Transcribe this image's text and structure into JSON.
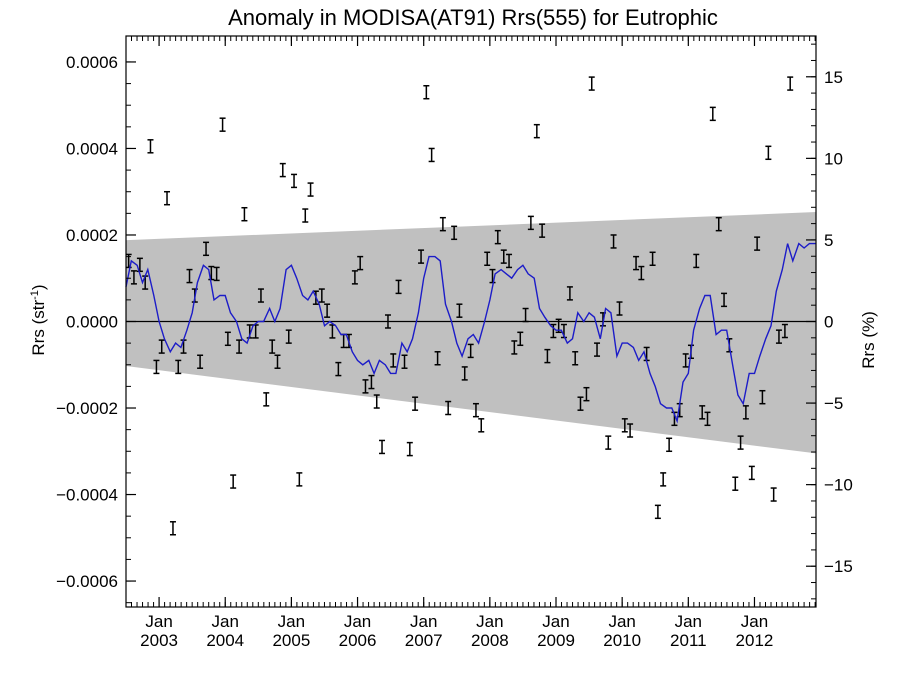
{
  "chart_data": {
    "type": "scatter",
    "title": "Anomaly in MODISA(AT91) Rrs(555) for Eutrophic",
    "ylabel": {
      "base": "Rrs (str",
      "sup": "-1",
      "tail": ")"
    },
    "y2label": "Rrs (%)",
    "xlim": [
      2002.5,
      2012.93
    ],
    "ylim": [
      -0.00066,
      0.00066
    ],
    "y2lim": [
      -17.5,
      17.5
    ],
    "x_ticks": [
      {
        "x": 2003.0,
        "month": "Jan",
        "year": "2003"
      },
      {
        "x": 2004.0,
        "month": "Jan",
        "year": "2004"
      },
      {
        "x": 2005.0,
        "month": "Jan",
        "year": "2005"
      },
      {
        "x": 2006.0,
        "month": "Jan",
        "year": "2006"
      },
      {
        "x": 2007.0,
        "month": "Jan",
        "year": "2007"
      },
      {
        "x": 2008.0,
        "month": "Jan",
        "year": "2008"
      },
      {
        "x": 2009.0,
        "month": "Jan",
        "year": "2009"
      },
      {
        "x": 2010.0,
        "month": "Jan",
        "year": "2010"
      },
      {
        "x": 2011.0,
        "month": "Jan",
        "year": "2011"
      },
      {
        "x": 2012.0,
        "month": "Jan",
        "year": "2012"
      }
    ],
    "y_ticks": [
      {
        "v": 0.0006,
        "label": "0.0006"
      },
      {
        "v": 0.0004,
        "label": "0.0004"
      },
      {
        "v": 0.0002,
        "label": "0.0002"
      },
      {
        "v": 0.0,
        "label": "0.0000"
      },
      {
        "v": -0.0002,
        "label": "−0.0002"
      },
      {
        "v": -0.0004,
        "label": "−0.0004"
      },
      {
        "v": -0.0006,
        "label": "−0.0006"
      }
    ],
    "y2_ticks": [
      {
        "v": 15,
        "label": "15"
      },
      {
        "v": 10,
        "label": "10"
      },
      {
        "v": 5,
        "label": "5"
      },
      {
        "v": 0,
        "label": "0"
      },
      {
        "v": -5,
        "label": "−5"
      },
      {
        "v": -10,
        "label": "−10"
      },
      {
        "v": -15,
        "label": "−15"
      }
    ],
    "band": {
      "x": [
        2002.5,
        2012.93
      ],
      "upper": [
        0.000188,
        0.000253
      ],
      "lower": [
        -0.000103,
        -0.000305
      ],
      "color": "#c0c0c0"
    },
    "zero_line": 0.0,
    "points": [
      [
        2002.54,
        0.00014
      ],
      [
        2002.62,
        0.000102
      ],
      [
        2002.71,
        0.000131
      ],
      [
        2002.79,
        9e-05
      ],
      [
        2002.87,
        0.000405
      ],
      [
        2002.96,
        -0.000105
      ],
      [
        2003.04,
        -5.8e-05
      ],
      [
        2003.12,
        0.000285
      ],
      [
        2003.21,
        -0.000478
      ],
      [
        2003.29,
        -0.000105
      ],
      [
        2003.37,
        -5.8e-05
      ],
      [
        2003.46,
        0.000105
      ],
      [
        2003.54,
        6e-05
      ],
      [
        2003.62,
        -9.3e-05
      ],
      [
        2003.71,
        0.000168
      ],
      [
        2003.79,
        0.000112
      ],
      [
        2003.87,
        0.00011
      ],
      [
        2003.96,
        0.000455
      ],
      [
        2004.04,
        -4e-05
      ],
      [
        2004.12,
        -0.00037
      ],
      [
        2004.21,
        -5.8e-05
      ],
      [
        2004.29,
        0.000248
      ],
      [
        2004.37,
        -2.3e-05
      ],
      [
        2004.46,
        -2.3e-05
      ],
      [
        2004.54,
        6e-05
      ],
      [
        2004.62,
        -0.00018
      ],
      [
        2004.71,
        -5.8e-05
      ],
      [
        2004.79,
        -9.3e-05
      ],
      [
        2004.87,
        0.00035
      ],
      [
        2004.96,
        -3.5e-05
      ],
      [
        2005.04,
        0.000325
      ],
      [
        2005.12,
        -0.000365
      ],
      [
        2005.21,
        0.000245
      ],
      [
        2005.29,
        0.000305
      ],
      [
        2005.37,
        5.5e-05
      ],
      [
        2005.46,
        6e-05
      ],
      [
        2005.54,
        2.5e-05
      ],
      [
        2005.62,
        -2.3e-05
      ],
      [
        2005.71,
        -0.00011
      ],
      [
        2005.79,
        -4.5e-05
      ],
      [
        2005.87,
        -4.5e-05
      ],
      [
        2005.96,
        0.000102
      ],
      [
        2006.04,
        0.000135
      ],
      [
        2006.12,
        -0.00015
      ],
      [
        2006.21,
        -0.00014
      ],
      [
        2006.29,
        -0.000185
      ],
      [
        2006.37,
        -0.00029
      ],
      [
        2006.46,
        0.0
      ],
      [
        2006.54,
        -9e-05
      ],
      [
        2006.62,
        8e-05
      ],
      [
        2006.71,
        -9.3e-05
      ],
      [
        2006.79,
        -0.000295
      ],
      [
        2006.87,
        -0.00019
      ],
      [
        2006.96,
        0.00015
      ],
      [
        2007.04,
        0.00053
      ],
      [
        2007.12,
        0.000385
      ],
      [
        2007.21,
        -8.5e-05
      ],
      [
        2007.29,
        0.000225
      ],
      [
        2007.37,
        -0.0002
      ],
      [
        2007.46,
        0.000205
      ],
      [
        2007.54,
        2.5e-05
      ],
      [
        2007.62,
        -0.00012
      ],
      [
        2007.71,
        -6.8e-05
      ],
      [
        2007.79,
        -0.000205
      ],
      [
        2007.87,
        -0.00024
      ],
      [
        2007.96,
        0.000145
      ],
      [
        2008.04,
        0.000105
      ],
      [
        2008.12,
        0.000195
      ],
      [
        2008.21,
        0.00015
      ],
      [
        2008.29,
        0.00014
      ],
      [
        2008.37,
        -6e-05
      ],
      [
        2008.46,
        -4e-05
      ],
      [
        2008.54,
        1.5e-05
      ],
      [
        2008.62,
        0.000228
      ],
      [
        2008.71,
        0.00044
      ],
      [
        2008.79,
        0.00021
      ],
      [
        2008.87,
        -8e-05
      ],
      [
        2008.96,
        -2.2e-05
      ],
      [
        2009.04,
        -1e-05
      ],
      [
        2009.12,
        -2.2e-05
      ],
      [
        2009.21,
        6.5e-05
      ],
      [
        2009.29,
        -8.5e-05
      ],
      [
        2009.37,
        -0.00019
      ],
      [
        2009.46,
        -0.000168
      ],
      [
        2009.54,
        0.00055
      ],
      [
        2009.62,
        -6.5e-05
      ],
      [
        2009.71,
        5e-06
      ],
      [
        2009.79,
        -0.00028
      ],
      [
        2009.87,
        0.000185
      ],
      [
        2009.96,
        3e-05
      ],
      [
        2010.04,
        -0.00024
      ],
      [
        2010.12,
        -0.000252
      ],
      [
        2010.21,
        0.000135
      ],
      [
        2010.29,
        0.000112
      ],
      [
        2010.37,
        -7.5e-05
      ],
      [
        2010.46,
        0.000145
      ],
      [
        2010.54,
        -0.00044
      ],
      [
        2010.62,
        -0.000365
      ],
      [
        2010.71,
        -0.000285
      ],
      [
        2010.79,
        -0.000225
      ],
      [
        2010.87,
        -0.000205
      ],
      [
        2010.96,
        -9e-05
      ],
      [
        2011.04,
        -7e-05
      ],
      [
        2011.12,
        0.00014
      ],
      [
        2011.21,
        -0.00021
      ],
      [
        2011.29,
        -0.000225
      ],
      [
        2011.37,
        0.00048
      ],
      [
        2011.46,
        0.000225
      ],
      [
        2011.54,
        5e-05
      ],
      [
        2011.62,
        -5.5e-05
      ],
      [
        2011.71,
        -0.000375
      ],
      [
        2011.79,
        -0.00028
      ],
      [
        2011.87,
        -0.00021
      ],
      [
        2011.96,
        -0.00035
      ],
      [
        2012.04,
        0.00018
      ],
      [
        2012.12,
        -0.000175
      ],
      [
        2012.21,
        0.00039
      ],
      [
        2012.29,
        -0.0004
      ],
      [
        2012.37,
        -3.5e-05
      ],
      [
        2012.46,
        -2.2e-05
      ],
      [
        2012.54,
        0.00055
      ]
    ],
    "error_halfwidth": 1.5e-05,
    "series": [
      {
        "color": "#1c1cc8",
        "x": [
          2002.5,
          2002.58,
          2002.67,
          2002.75,
          2002.83,
          2002.92,
          2003.0,
          2003.08,
          2003.17,
          2003.25,
          2003.33,
          2003.42,
          2003.5,
          2003.58,
          2003.67,
          2003.75,
          2003.83,
          2003.92,
          2004.0,
          2004.08,
          2004.17,
          2004.25,
          2004.33,
          2004.42,
          2004.5,
          2004.58,
          2004.67,
          2004.75,
          2004.83,
          2004.92,
          2005.0,
          2005.08,
          2005.17,
          2005.25,
          2005.33,
          2005.42,
          2005.5,
          2005.58,
          2005.67,
          2005.75,
          2005.83,
          2005.92,
          2006.0,
          2006.08,
          2006.17,
          2006.25,
          2006.33,
          2006.42,
          2006.5,
          2006.58,
          2006.67,
          2006.75,
          2006.83,
          2006.92,
          2007.0,
          2007.08,
          2007.17,
          2007.25,
          2007.33,
          2007.42,
          2007.5,
          2007.58,
          2007.67,
          2007.75,
          2007.83,
          2007.92,
          2008.0,
          2008.08,
          2008.17,
          2008.25,
          2008.33,
          2008.42,
          2008.5,
          2008.58,
          2008.67,
          2008.75,
          2008.83,
          2008.92,
          2009.0,
          2009.08,
          2009.17,
          2009.25,
          2009.33,
          2009.42,
          2009.5,
          2009.58,
          2009.67,
          2009.75,
          2009.83,
          2009.92,
          2010.0,
          2010.08,
          2010.17,
          2010.25,
          2010.33,
          2010.42,
          2010.5,
          2010.58,
          2010.67,
          2010.75,
          2010.83,
          2010.92,
          2011.0,
          2011.08,
          2011.17,
          2011.25,
          2011.33,
          2011.42,
          2011.5,
          2011.58,
          2011.67,
          2011.75,
          2011.83,
          2011.92,
          2012.0,
          2012.08,
          2012.17,
          2012.25,
          2012.33,
          2012.42,
          2012.5,
          2012.58,
          2012.67,
          2012.75,
          2012.83,
          2012.93
        ],
        "values": [
          8e-05,
          0.00014,
          0.00013,
          9e-05,
          0.00012,
          6e-05,
          0.0,
          -4e-05,
          -7e-05,
          -5e-05,
          -6e-05,
          -2e-05,
          2e-05,
          9e-05,
          0.00013,
          0.00012,
          5e-05,
          6e-05,
          6e-05,
          2e-05,
          0.0,
          -4e-05,
          -5e-05,
          -1e-05,
          0.0,
          0.0,
          3e-05,
          0.0,
          3e-05,
          0.00012,
          0.00013,
          0.0001,
          6e-05,
          5e-05,
          7e-05,
          4e-05,
          -1e-05,
          0.0,
          -1e-05,
          -3e-05,
          -3e-05,
          -7e-05,
          -9e-05,
          -0.0001,
          -9e-05,
          -0.00012,
          -9e-05,
          -0.0001,
          -0.00012,
          -0.00012,
          -5e-05,
          -7e-05,
          -4e-05,
          2e-05,
          0.0001,
          0.00015,
          0.00015,
          0.00014,
          4e-05,
          0.0,
          -5e-05,
          -8e-05,
          -4e-05,
          -3e-05,
          -5e-05,
          0.0,
          5e-05,
          0.00011,
          0.00012,
          0.00011,
          0.0001,
          0.00012,
          0.00013,
          0.00011,
          0.0001,
          3e-05,
          1e-05,
          -1e-05,
          -2e-05,
          -2e-05,
          -5e-05,
          -4e-05,
          2e-05,
          0.0,
          2e-05,
          1e-05,
          -4e-05,
          3e-05,
          2e-05,
          -8e-05,
          -5e-05,
          -5e-05,
          -6e-05,
          -9e-05,
          -7e-05,
          -0.00012,
          -0.00015,
          -0.00019,
          -0.0002,
          -0.0002,
          -0.00023,
          -0.00014,
          -0.00012,
          -2e-05,
          3e-05,
          6e-05,
          6e-05,
          -3e-05,
          -2e-05,
          -2e-05,
          -0.0001,
          -0.00017,
          -0.00019,
          -0.00012,
          -0.00012,
          -8e-05,
          -4e-05,
          -1e-05,
          7e-05,
          0.00012,
          0.00018,
          0.00014,
          0.00018,
          0.00017,
          0.00018,
          0.00018
        ]
      }
    ]
  }
}
